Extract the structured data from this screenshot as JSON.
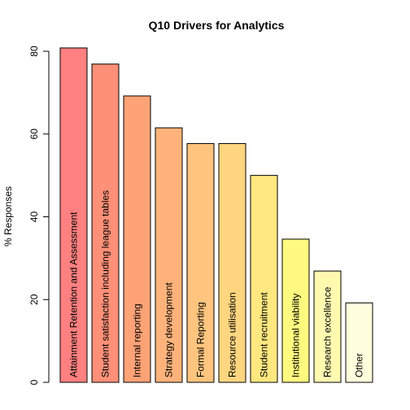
{
  "chart_data": {
    "type": "bar",
    "title": "Q10 Drivers for Analytics",
    "xlabel": "",
    "ylabel": "% Responses",
    "ylim": [
      0,
      80
    ],
    "yticks": [
      "0",
      "20",
      "40",
      "60",
      "80"
    ],
    "categories": [
      "Attainment Retention and Assessment",
      "Student satisfaction including league tables",
      "Internal reporting",
      "Strategy development",
      "Formal Reporting",
      "Resource utilisation",
      "Student recruitment",
      "Institutional viability",
      "Research excellence",
      "Other"
    ],
    "values": [
      80.8,
      76.9,
      69.2,
      61.5,
      57.7,
      57.7,
      50.0,
      34.6,
      26.9,
      19.2
    ],
    "colors": [
      "#FF8080",
      "#FF9078",
      "#FFA276",
      "#FFB37B",
      "#FFC47E",
      "#FFD67F",
      "#FFE87F",
      "#FFFA7F",
      "#FFFAB0",
      "#FFFFDD"
    ],
    "grid": false,
    "legend": "none"
  }
}
